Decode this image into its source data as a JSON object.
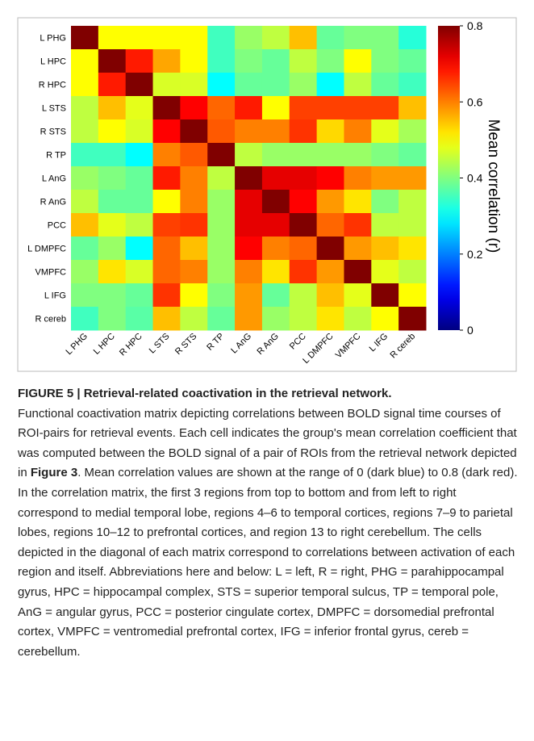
{
  "chart_data": {
    "type": "heatmap",
    "row_labels": [
      "L PHG",
      "L HPC",
      "R HPC",
      "L STS",
      "R STS",
      "R TP",
      "L AnG",
      "R AnG",
      "PCC",
      "L DMPFC",
      "VMPFC",
      "L IFG",
      "R cereb"
    ],
    "col_labels": [
      "L PHG",
      "L HPC",
      "R HPC",
      "L STS",
      "R STS",
      "R TP",
      "L AnG",
      "R AnG",
      "PCC",
      "L DMPFC",
      "VMPFC",
      "L IFG",
      "R cereb"
    ],
    "values": [
      [
        0.8,
        0.5,
        0.5,
        0.5,
        0.5,
        0.35,
        0.42,
        0.45,
        0.55,
        0.38,
        0.4,
        0.4,
        0.33
      ],
      [
        0.5,
        0.8,
        0.68,
        0.57,
        0.5,
        0.35,
        0.4,
        0.38,
        0.45,
        0.4,
        0.5,
        0.4,
        0.38
      ],
      [
        0.5,
        0.68,
        0.8,
        0.47,
        0.47,
        0.3,
        0.38,
        0.38,
        0.42,
        0.3,
        0.45,
        0.38,
        0.35
      ],
      [
        0.45,
        0.55,
        0.48,
        0.8,
        0.7,
        0.62,
        0.68,
        0.5,
        0.65,
        0.65,
        0.65,
        0.65,
        0.55
      ],
      [
        0.45,
        0.5,
        0.47,
        0.7,
        0.8,
        0.63,
        0.6,
        0.6,
        0.66,
        0.53,
        0.6,
        0.48,
        0.43
      ],
      [
        0.35,
        0.35,
        0.3,
        0.6,
        0.63,
        0.8,
        0.45,
        0.42,
        0.42,
        0.42,
        0.42,
        0.4,
        0.38
      ],
      [
        0.42,
        0.4,
        0.38,
        0.68,
        0.6,
        0.45,
        0.8,
        0.72,
        0.72,
        0.7,
        0.6,
        0.58,
        0.58
      ],
      [
        0.45,
        0.38,
        0.38,
        0.5,
        0.6,
        0.42,
        0.72,
        0.8,
        0.7,
        0.58,
        0.52,
        0.4,
        0.45
      ],
      [
        0.55,
        0.48,
        0.45,
        0.65,
        0.66,
        0.42,
        0.72,
        0.72,
        0.8,
        0.62,
        0.66,
        0.45,
        0.45
      ],
      [
        0.38,
        0.42,
        0.3,
        0.62,
        0.55,
        0.42,
        0.7,
        0.6,
        0.62,
        0.8,
        0.58,
        0.55,
        0.52
      ],
      [
        0.42,
        0.52,
        0.47,
        0.62,
        0.6,
        0.42,
        0.6,
        0.52,
        0.66,
        0.58,
        0.8,
        0.48,
        0.45
      ],
      [
        0.4,
        0.4,
        0.38,
        0.66,
        0.5,
        0.4,
        0.58,
        0.38,
        0.45,
        0.55,
        0.48,
        0.8,
        0.5
      ],
      [
        0.35,
        0.4,
        0.37,
        0.55,
        0.45,
        0.38,
        0.58,
        0.42,
        0.45,
        0.52,
        0.45,
        0.5,
        0.8
      ]
    ],
    "colormap": "jet",
    "clim": [
      0,
      0.8
    ],
    "cticks": [
      0,
      0.2,
      0.4,
      0.6,
      0.8
    ],
    "colorbar_label": "Mean correlation (r)"
  },
  "caption": {
    "title": "FIGURE 5 | Retrieval-related coactivation in the retrieval network.",
    "body": [
      "Functional coactivation matrix depicting correlations between BOLD signal time courses of ROI-pairs for retrieval events. Each cell indicates the group's mean correlation coefficient that was computed between the BOLD signal of a pair of ROIs from the retrieval network depicted in ",
      "Figure 3",
      ". Mean correlation values are shown at the range of 0 (dark blue) to 0.8 (dark red). In the correlation matrix, the first 3 regions from top to bottom and from left to right correspond to medial temporal lobe, regions 4–6 to temporal cortices, regions 7–9 to parietal lobes, regions 10–12 to prefrontal cortices, and region 13 to right cerebellum. The cells depicted in the diagonal of each matrix correspond to correlations between activation of each region and itself. Abbreviations here and below: L = left, R = right, PHG = parahippocampal gyrus, HPC = hippocampal complex, STS = superior temporal sulcus, TP = temporal pole, AnG = angular gyrus, PCC = posterior cingulate cortex, DMPFC = dorsomedial prefrontal cortex, VMPFC = ventromedial prefrontal cortex, IFG = inferior frontal gyrus, cereb = cerebellum."
    ]
  }
}
